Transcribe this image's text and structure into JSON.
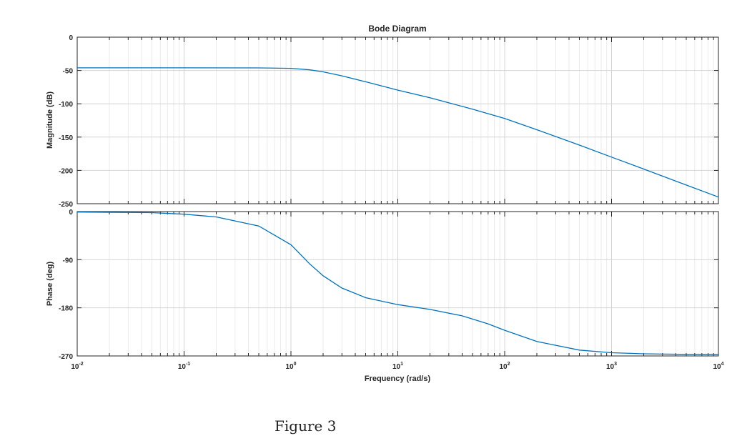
{
  "chart_data": {
    "type": "line",
    "title": "Bode Diagram",
    "xlabel": "Frequency  (rad/s)",
    "xscale": "log",
    "xlim": [
      0.01,
      10000
    ],
    "xticks": [
      {
        "base": "10",
        "exp": "-2"
      },
      {
        "base": "10",
        "exp": "-1"
      },
      {
        "base": "10",
        "exp": "0"
      },
      {
        "base": "10",
        "exp": "1"
      },
      {
        "base": "10",
        "exp": "2"
      },
      {
        "base": "10",
        "exp": "3"
      },
      {
        "base": "10",
        "exp": "4"
      }
    ],
    "grid": true,
    "line_color": "#0072BD",
    "magnitude": {
      "ylabel": "Magnitude (dB)",
      "ylim": [
        -250,
        0
      ],
      "yticks": [
        0,
        -50,
        -100,
        -150,
        -200,
        -250
      ],
      "x": [
        0.01,
        0.1,
        0.5,
        1,
        1.5,
        2,
        3,
        5,
        10,
        20,
        50,
        100,
        200,
        500,
        1000,
        2000,
        5000,
        10000
      ],
      "y": [
        -46,
        -46,
        -46.1,
        -46.8,
        -49,
        -52,
        -58,
        -67,
        -79.5,
        -91,
        -108,
        -122,
        -139,
        -162,
        -180,
        -198,
        -222,
        -240
      ]
    },
    "phase": {
      "ylabel": "Phase (deg)",
      "ylim": [
        -270,
        0
      ],
      "yticks": [
        0,
        -90,
        -180,
        -270
      ],
      "x": [
        0.01,
        0.05,
        0.1,
        0.2,
        0.5,
        1,
        1.5,
        2,
        3,
        5,
        10,
        20,
        40,
        70,
        100,
        200,
        500,
        1000,
        2000,
        5000,
        10000
      ],
      "y": [
        -1,
        -2,
        -5,
        -10,
        -27,
        -62,
        -98,
        -120,
        -143,
        -161,
        -174,
        -183,
        -195,
        -210,
        -222,
        -243,
        -259,
        -264,
        -266,
        -267,
        -267
      ]
    }
  },
  "caption": "Figure 3"
}
